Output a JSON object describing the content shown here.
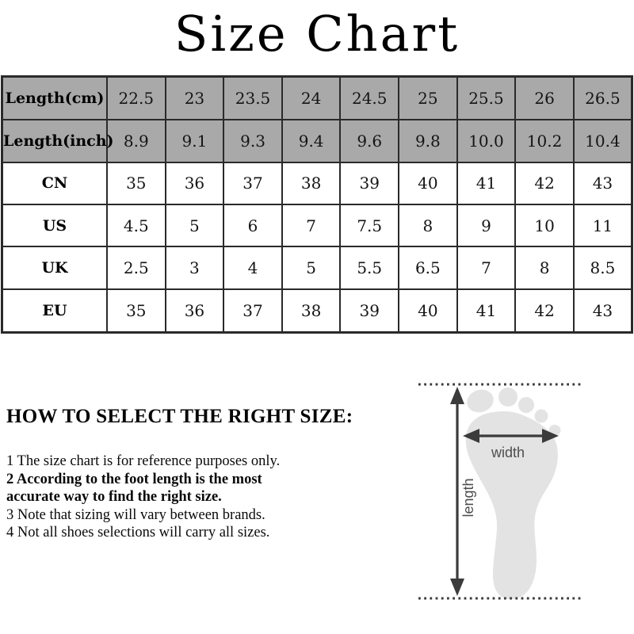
{
  "title": "Size Chart",
  "size_table": {
    "rows": [
      {
        "label": "Length(cm)",
        "shaded": true,
        "values": [
          "22.5",
          "23",
          "23.5",
          "24",
          "24.5",
          "25",
          "25.5",
          "26",
          "26.5"
        ]
      },
      {
        "label": "Length(inch)",
        "shaded": true,
        "values": [
          "8.9",
          "9.1",
          "9.3",
          "9.4",
          "9.6",
          "9.8",
          "10.0",
          "10.2",
          "10.4"
        ]
      },
      {
        "label": "CN",
        "shaded": false,
        "values": [
          "35",
          "36",
          "37",
          "38",
          "39",
          "40",
          "41",
          "42",
          "43"
        ]
      },
      {
        "label": "US",
        "shaded": false,
        "values": [
          "4.5",
          "5",
          "6",
          "7",
          "7.5",
          "8",
          "9",
          "10",
          "11"
        ]
      },
      {
        "label": "UK",
        "shaded": false,
        "values": [
          "2.5",
          "3",
          "4",
          "5",
          "5.5",
          "6.5",
          "7",
          "8",
          "8.5"
        ]
      },
      {
        "label": "EU",
        "shaded": false,
        "values": [
          "35",
          "36",
          "37",
          "38",
          "39",
          "40",
          "41",
          "42",
          "43"
        ]
      }
    ]
  },
  "how_to": {
    "heading": "HOW TO SELECT THE RIGHT SIZE:",
    "items": [
      {
        "bold": false,
        "lines": [
          "1 The size chart is for reference purposes only."
        ]
      },
      {
        "bold": true,
        "lines": [
          "2 According to the foot length is the most",
          "accurate way to find the right size."
        ]
      },
      {
        "bold": false,
        "lines": [
          "3 Note that sizing will vary between brands."
        ]
      },
      {
        "bold": false,
        "lines": [
          "4 Not all shoes selections will carry all sizes."
        ]
      }
    ]
  },
  "foot_diagram": {
    "width_label": "width",
    "length_label": "length"
  },
  "colors": {
    "table_header_bg": "#a9a9a9",
    "table_border": "#2a2a2a",
    "foot_fill": "#e3e3e3",
    "arrow_color": "#3b3b3b",
    "diagram_label_color": "#4d4d4d"
  }
}
